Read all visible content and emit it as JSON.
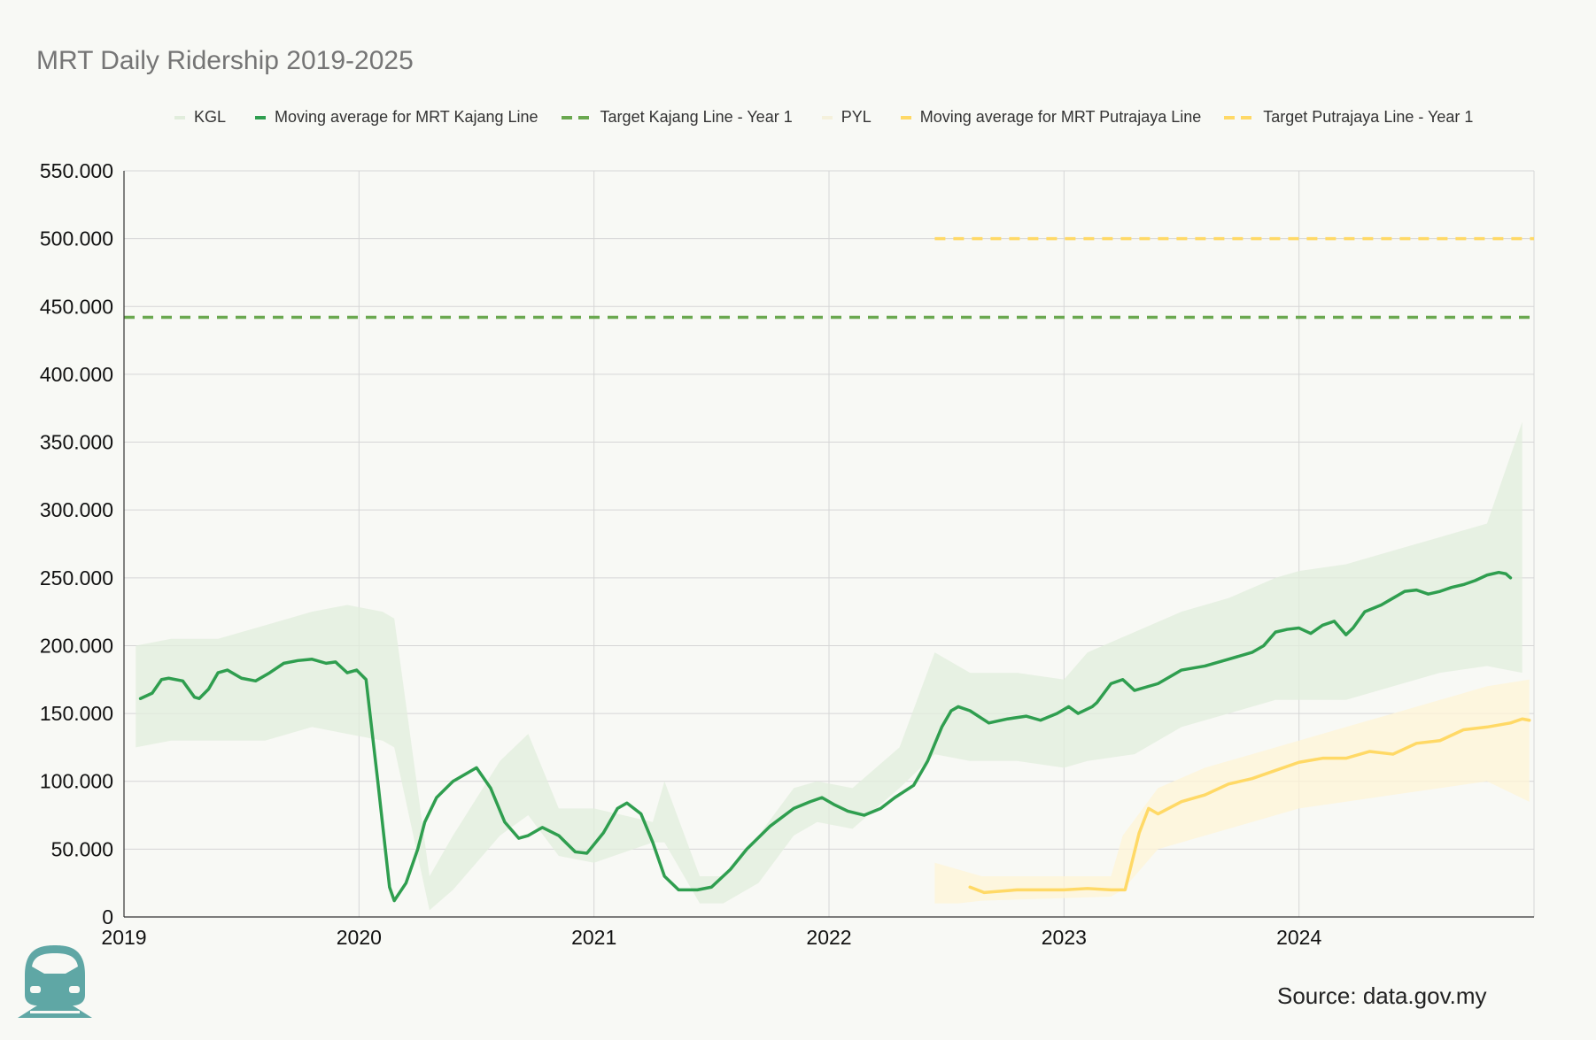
{
  "chart_data": {
    "type": "line",
    "title": "MRT Daily Ridership 2019-2025",
    "xlabel": "",
    "ylabel": "",
    "x_range": [
      2019.0,
      2025.0
    ],
    "ylim": [
      0,
      550000
    ],
    "y_tick_values": [
      0,
      50000,
      100000,
      150000,
      200000,
      250000,
      300000,
      350000,
      400000,
      450000,
      500000,
      550000
    ],
    "y_tick_labels": [
      "0",
      "50.000",
      "100.000",
      "150.000",
      "200.000",
      "250.000",
      "300.000",
      "350.000",
      "400.000",
      "450.000",
      "500.000",
      "550.000"
    ],
    "x_tick_values": [
      2019,
      2020,
      2021,
      2022,
      2023,
      2024
    ],
    "x_tick_labels": [
      "2019",
      "2020",
      "2021",
      "2022",
      "2023",
      "2024"
    ],
    "grid": true,
    "legend_position": "top",
    "series": [
      {
        "name": "KGL",
        "style": "faint-band",
        "color": "#e1eddc",
        "x": [
          2019.05,
          2019.2,
          2019.4,
          2019.6,
          2019.8,
          2019.95,
          2020.1,
          2020.15,
          2020.3,
          2020.4,
          2020.6,
          2020.72,
          2020.85,
          2021.0,
          2021.25,
          2021.3,
          2021.45,
          2021.55,
          2021.7,
          2021.85,
          2021.95,
          2022.1,
          2022.3,
          2022.45,
          2022.6,
          2022.8,
          2023.0,
          2023.1,
          2023.3,
          2023.5,
          2023.7,
          2023.9,
          2024.0,
          2024.2,
          2024.4,
          2024.6,
          2024.8,
          2024.95
        ],
        "low": [
          125000,
          130000,
          130000,
          130000,
          140000,
          135000,
          130000,
          125000,
          5000,
          20000,
          60000,
          75000,
          45000,
          40000,
          55000,
          55000,
          10000,
          10000,
          25000,
          60000,
          70000,
          65000,
          95000,
          120000,
          115000,
          115000,
          110000,
          115000,
          120000,
          140000,
          150000,
          160000,
          160000,
          160000,
          170000,
          180000,
          185000,
          180000
        ],
        "high": [
          200000,
          205000,
          205000,
          215000,
          225000,
          230000,
          225000,
          220000,
          30000,
          60000,
          115000,
          135000,
          80000,
          80000,
          70000,
          100000,
          30000,
          30000,
          60000,
          95000,
          100000,
          95000,
          125000,
          195000,
          180000,
          180000,
          175000,
          195000,
          210000,
          225000,
          235000,
          250000,
          255000,
          260000,
          270000,
          280000,
          290000,
          365000
        ]
      },
      {
        "name": "Moving average for MRT Kajang Line",
        "style": "solid",
        "color": "#2f9e4f",
        "x": [
          2019.07,
          2019.12,
          2019.16,
          2019.19,
          2019.25,
          2019.3,
          2019.32,
          2019.36,
          2019.4,
          2019.44,
          2019.5,
          2019.56,
          2019.62,
          2019.68,
          2019.74,
          2019.8,
          2019.86,
          2019.9,
          2019.95,
          2019.99,
          2020.03,
          2020.08,
          2020.13,
          2020.15,
          2020.2,
          2020.25,
          2020.28,
          2020.33,
          2020.4,
          2020.5,
          2020.56,
          2020.62,
          2020.68,
          2020.72,
          2020.78,
          2020.85,
          2020.92,
          2020.97,
          2021.04,
          2021.1,
          2021.14,
          2021.2,
          2021.25,
          2021.3,
          2021.36,
          2021.44,
          2021.5,
          2021.58,
          2021.65,
          2021.75,
          2021.85,
          2021.92,
          2021.97,
          2022.02,
          2022.08,
          2022.15,
          2022.22,
          2022.28,
          2022.36,
          2022.42,
          2022.48,
          2022.52,
          2022.55,
          2022.6,
          2022.68,
          2022.76,
          2022.84,
          2022.9,
          2022.97,
          2023.02,
          2023.06,
          2023.12,
          2023.14,
          2023.2,
          2023.25,
          2023.3,
          2023.4,
          2023.5,
          2023.6,
          2023.7,
          2023.8,
          2023.85,
          2023.9,
          2023.95,
          2024.0,
          2024.05,
          2024.1,
          2024.15,
          2024.2,
          2024.23,
          2024.28,
          2024.35,
          2024.4,
          2024.45,
          2024.5,
          2024.55,
          2024.6,
          2024.65,
          2024.7,
          2024.75,
          2024.8,
          2024.85,
          2024.88,
          2024.9
        ],
        "y": [
          161000,
          165000,
          175000,
          176000,
          174000,
          162000,
          161000,
          168000,
          180000,
          182000,
          176000,
          174000,
          180000,
          187000,
          189000,
          190000,
          187000,
          188000,
          180000,
          182000,
          175000,
          100000,
          22000,
          12000,
          25000,
          50000,
          70000,
          88000,
          100000,
          110000,
          95000,
          70000,
          58000,
          60000,
          66000,
          60000,
          48000,
          47000,
          62000,
          80000,
          84000,
          76000,
          55000,
          30000,
          20000,
          20000,
          22000,
          35000,
          50000,
          67000,
          80000,
          85000,
          88000,
          83000,
          78000,
          75000,
          80000,
          88000,
          97000,
          115000,
          140000,
          152000,
          155000,
          152000,
          143000,
          146000,
          148000,
          145000,
          150000,
          155000,
          150000,
          155000,
          158000,
          172000,
          175000,
          167000,
          172000,
          182000,
          185000,
          190000,
          195000,
          200000,
          210000,
          212000,
          213000,
          209000,
          215000,
          218000,
          208000,
          213000,
          225000,
          230000,
          235000,
          240000,
          241000,
          238000,
          240000,
          243000,
          245000,
          248000,
          252000,
          254000,
          253000,
          250000
        ]
      },
      {
        "name": "Target Kajang Line - Year 1",
        "style": "dashed",
        "color": "#6aa84f",
        "x": [
          2019.0,
          2025.0
        ],
        "y": [
          442000,
          442000
        ]
      },
      {
        "name": "PYL",
        "style": "faint-band",
        "color": "#fff4d6",
        "x": [
          2022.45,
          2022.55,
          2022.65,
          2023.2,
          2023.25,
          2023.4,
          2023.6,
          2023.8,
          2024.0,
          2024.2,
          2024.4,
          2024.6,
          2024.8,
          2024.98
        ],
        "low": [
          10000,
          10000,
          12000,
          15000,
          20000,
          50000,
          60000,
          70000,
          80000,
          85000,
          90000,
          95000,
          100000,
          85000
        ],
        "high": [
          40000,
          35000,
          30000,
          30000,
          60000,
          95000,
          110000,
          120000,
          130000,
          140000,
          150000,
          160000,
          170000,
          175000
        ]
      },
      {
        "name": "Moving average for MRT Putrajaya Line",
        "style": "solid",
        "color": "#ffd966",
        "x": [
          2022.6,
          2022.66,
          2022.8,
          2023.0,
          2023.1,
          2023.2,
          2023.26,
          2023.32,
          2023.36,
          2023.4,
          2023.5,
          2023.6,
          2023.7,
          2023.8,
          2023.9,
          2024.0,
          2024.1,
          2024.2,
          2024.3,
          2024.4,
          2024.5,
          2024.6,
          2024.7,
          2024.8,
          2024.9,
          2024.95,
          2024.98
        ],
        "y": [
          22000,
          18000,
          20000,
          20000,
          21000,
          20000,
          20000,
          62000,
          80000,
          76000,
          85000,
          90000,
          98000,
          102000,
          108000,
          114000,
          117000,
          117000,
          122000,
          120000,
          128000,
          130000,
          138000,
          140000,
          143000,
          146000,
          145000
        ]
      },
      {
        "name": "Target Putrajaya Line - Year 1",
        "style": "dashed",
        "color": "#ffd966",
        "x": [
          2022.45,
          2025.0
        ],
        "y": [
          500000,
          500000
        ]
      }
    ],
    "source": "Source: data.gov.my"
  },
  "legend": [
    {
      "label": "KGL",
      "color": "#e1eddc",
      "style": "faint"
    },
    {
      "label": "Moving average for MRT Kajang Line",
      "color": "#2f9e4f",
      "style": "solid"
    },
    {
      "label": "Target Kajang Line - Year 1",
      "color": "#6aa84f",
      "style": "dashed"
    },
    {
      "label": "PYL",
      "color": "#f5f1dc",
      "style": "faint"
    },
    {
      "label": "Moving average for MRT Putrajaya Line",
      "color": "#ffd966",
      "style": "solid"
    },
    {
      "label": "Target Putrajaya Line - Year 1",
      "color": "#ffd966",
      "style": "dashed"
    }
  ],
  "logo_icon": "train-icon",
  "logo_color": "#5fa7a5"
}
